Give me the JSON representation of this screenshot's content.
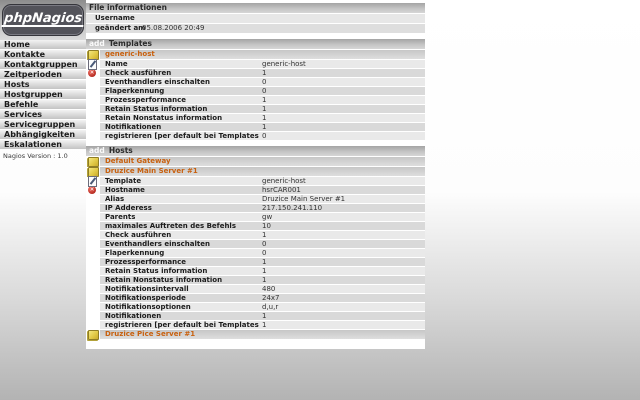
{
  "logo": {
    "text": "phpNagios"
  },
  "sidebar": {
    "items": [
      "Home",
      "Kontakte",
      "Kontaktgruppen",
      "Zeitperioden",
      "Hosts",
      "Hostgruppen",
      "Befehle",
      "Services",
      "Servicegruppen",
      "Abhängigkeiten",
      "Eskalationen"
    ],
    "version_label": "Nagios Version : 1.0"
  },
  "file_info": {
    "title": "File informationen",
    "rows": [
      {
        "label": "Username",
        "value": ""
      },
      {
        "label": "geändert am",
        "value": "05.08.2006 20:49"
      }
    ]
  },
  "sections": [
    {
      "add_label": "add",
      "title": "Templates",
      "entries": [
        {
          "name": "generic-host",
          "icon": "note-icon",
          "rows": [
            {
              "icon": "edit-icon",
              "label": "Name",
              "value": "generic-host"
            },
            {
              "icon": "delete-icon",
              "label": "Check ausführen",
              "value": "1"
            },
            {
              "icon": "",
              "label": "Eventhandlers einschalten",
              "value": "0"
            },
            {
              "icon": "",
              "label": "Flaperkennung",
              "value": "0"
            },
            {
              "icon": "",
              "label": "Prozessperformance",
              "value": "1"
            },
            {
              "icon": "",
              "label": "Retain Status information",
              "value": "1"
            },
            {
              "icon": "",
              "label": "Retain Nonstatus information",
              "value": "1"
            },
            {
              "icon": "",
              "label": "Notifikationen",
              "value": "1"
            },
            {
              "icon": "",
              "label": "registrieren [per default bei Templates 0=nein]",
              "value": "0"
            }
          ]
        }
      ]
    },
    {
      "add_label": "add",
      "title": "Hosts",
      "entries": [
        {
          "name": "Default Gateway",
          "icon": "note-icon",
          "rows": []
        },
        {
          "name": "Druzice Main Server #1",
          "icon": "note-icon",
          "rows": [
            {
              "icon": "edit-icon",
              "label": "Template",
              "value": "generic-host"
            },
            {
              "icon": "delete-icon",
              "label": "Hostname",
              "value": "hsrCAR001"
            },
            {
              "icon": "",
              "label": "Alias",
              "value": "Druzice Main Server #1"
            },
            {
              "icon": "",
              "label": "IP Adderess",
              "value": "217.150.241.110"
            },
            {
              "icon": "",
              "label": "Parents",
              "value": "gw"
            },
            {
              "icon": "",
              "label": "maximales Auftreten des Befehls",
              "value": "10"
            },
            {
              "icon": "",
              "label": "Check ausführen",
              "value": "1"
            },
            {
              "icon": "",
              "label": "Eventhandlers einschalten",
              "value": "0"
            },
            {
              "icon": "",
              "label": "Flaperkennung",
              "value": "0"
            },
            {
              "icon": "",
              "label": "Prozessperformance",
              "value": "1"
            },
            {
              "icon": "",
              "label": "Retain Status information",
              "value": "1"
            },
            {
              "icon": "",
              "label": "Retain Nonstatus information",
              "value": "1"
            },
            {
              "icon": "",
              "label": "Notifikationsintervall",
              "value": "480"
            },
            {
              "icon": "",
              "label": "Notifikationsperiode",
              "value": "24x7"
            },
            {
              "icon": "",
              "label": "Notifikationsoptionen",
              "value": "d,u,r"
            },
            {
              "icon": "",
              "label": "Notifikationen",
              "value": "1"
            },
            {
              "icon": "",
              "label": "registrieren [per default bei Templates 0=nein]",
              "value": "1"
            }
          ]
        },
        {
          "name": "Druzice Pice Server #1",
          "icon": "note-icon",
          "rows": []
        }
      ]
    }
  ],
  "icons": {
    "delete_glyph": "✕"
  },
  "colors": {
    "accent_orange": "#c8600e",
    "delete_red": "#b0241a",
    "note_yellow": "#e0c642",
    "logo_box": "#53535a"
  }
}
